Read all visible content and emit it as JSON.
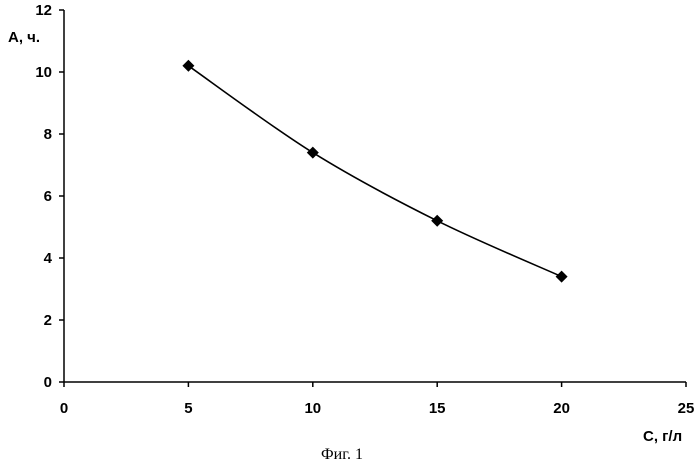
{
  "chart_data": {
    "type": "scatter",
    "x": [
      5,
      10,
      15,
      20
    ],
    "y": [
      10.2,
      7.4,
      5.2,
      3.4
    ],
    "trendline": "smooth",
    "xlabel": "C, г/л",
    "ylabel": "А, ч.",
    "xlim": [
      0,
      25
    ],
    "ylim": [
      0,
      12
    ],
    "xticks": [
      0,
      5,
      10,
      15,
      20,
      25
    ],
    "yticks": [
      0,
      2,
      4,
      6,
      8,
      10,
      12
    ],
    "marker": "diamond",
    "grid": false,
    "legend": "none"
  },
  "caption": "Фиг. 1"
}
